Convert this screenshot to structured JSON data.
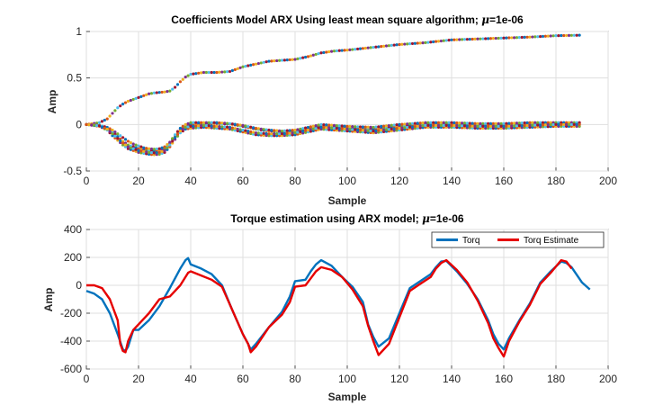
{
  "chart_data": [
    {
      "type": "scatter",
      "title_prefix": "Coefficients Model ARX Using least mean square algorithm; ",
      "title_mu": "μ",
      "title_suffix": "=1e-06",
      "xlabel": "Sample",
      "ylabel": "Amp",
      "xlim": [
        0,
        200
      ],
      "ylim": [
        -0.5,
        1
      ],
      "xticks": [
        "0",
        "20",
        "40",
        "60",
        "80",
        "100",
        "120",
        "140",
        "160",
        "180",
        "200"
      ],
      "yticks": [
        "-0.5",
        "0",
        "0.5",
        "1"
      ],
      "grid": true,
      "marker_colors": [
        "#0072bd",
        "#d95319",
        "#edb120",
        "#7e2f8e",
        "#77ac30",
        "#4dbeee",
        "#a2142f"
      ],
      "series": [
        {
          "x": [
            0,
            5,
            8,
            10,
            12,
            14,
            16,
            18,
            20,
            22,
            24,
            26,
            28,
            30,
            32,
            34,
            36,
            38,
            40,
            45,
            50,
            55,
            58,
            60,
            65,
            70,
            75,
            80,
            85,
            90,
            95,
            100,
            110,
            120,
            130,
            140,
            150,
            160,
            170,
            180,
            189
          ],
          "values": [
            0,
            0.02,
            0.06,
            0.12,
            0.18,
            0.22,
            0.25,
            0.27,
            0.29,
            0.31,
            0.33,
            0.34,
            0.345,
            0.35,
            0.36,
            0.4,
            0.46,
            0.51,
            0.54,
            0.56,
            0.56,
            0.57,
            0.6,
            0.62,
            0.65,
            0.68,
            0.69,
            0.7,
            0.73,
            0.77,
            0.79,
            0.8,
            0.83,
            0.86,
            0.88,
            0.91,
            0.92,
            0.93,
            0.94,
            0.955,
            0.96
          ]
        },
        {
          "x": [
            0,
            5,
            8,
            10,
            12,
            14,
            16,
            18,
            20,
            22,
            24,
            26,
            28,
            30,
            32,
            34,
            36,
            38,
            40,
            45,
            50,
            55,
            60,
            65,
            70,
            75,
            80,
            85,
            90,
            95,
            100,
            110,
            120,
            130,
            140,
            150,
            160,
            170,
            180,
            189
          ],
          "values": [
            0,
            -0.01,
            -0.04,
            -0.08,
            -0.13,
            -0.18,
            -0.22,
            -0.24,
            -0.26,
            -0.27,
            -0.28,
            -0.285,
            -0.28,
            -0.26,
            -0.2,
            -0.12,
            -0.05,
            -0.01,
            0.0,
            0.01,
            0.01,
            0.005,
            -0.02,
            -0.05,
            -0.07,
            -0.08,
            -0.07,
            -0.04,
            -0.02,
            -0.03,
            -0.04,
            -0.05,
            -0.02,
            0.01,
            0.0,
            -0.01,
            -0.01,
            0.0,
            0.01,
            0.01
          ]
        },
        {
          "x": [
            0,
            5,
            8,
            10,
            12,
            14,
            16,
            18,
            20,
            22,
            24,
            26,
            28,
            30,
            32,
            34,
            36,
            38,
            40,
            45,
            50,
            55,
            60,
            65,
            70,
            75,
            80,
            85,
            90,
            95,
            100,
            110,
            120,
            130,
            140,
            150,
            160,
            170,
            180,
            189
          ],
          "values": [
            0,
            -0.02,
            -0.06,
            -0.12,
            -0.17,
            -0.22,
            -0.26,
            -0.28,
            -0.3,
            -0.31,
            -0.32,
            -0.325,
            -0.32,
            -0.3,
            -0.24,
            -0.16,
            -0.09,
            -0.05,
            -0.04,
            -0.03,
            -0.04,
            -0.05,
            -0.08,
            -0.11,
            -0.12,
            -0.12,
            -0.11,
            -0.08,
            -0.05,
            -0.06,
            -0.07,
            -0.09,
            -0.06,
            -0.03,
            -0.03,
            -0.04,
            -0.04,
            -0.03,
            -0.02,
            -0.02
          ]
        },
        {
          "x": [
            0,
            5,
            8,
            10,
            12,
            14,
            16,
            18,
            20,
            22,
            24,
            26,
            28,
            30,
            32,
            34,
            36,
            38,
            40,
            45,
            50,
            55,
            60,
            65,
            70,
            75,
            80,
            85,
            90,
            95,
            100,
            110,
            120,
            130,
            140,
            150,
            160,
            170,
            180,
            189
          ],
          "values": [
            0,
            -0.01,
            -0.03,
            -0.06,
            -0.1,
            -0.14,
            -0.18,
            -0.21,
            -0.23,
            -0.25,
            -0.26,
            -0.265,
            -0.26,
            -0.24,
            -0.19,
            -0.11,
            -0.04,
            0.0,
            0.02,
            0.02,
            0.02,
            0.01,
            -0.01,
            -0.04,
            -0.06,
            -0.07,
            -0.06,
            -0.03,
            0.0,
            -0.01,
            -0.02,
            -0.03,
            0.0,
            0.02,
            0.02,
            0.01,
            0.01,
            0.02,
            0.02,
            0.02
          ]
        },
        {
          "x": [
            0,
            5,
            8,
            10,
            12,
            14,
            16,
            18,
            20,
            22,
            24,
            26,
            28,
            30,
            32,
            34,
            36,
            38,
            40,
            45,
            50,
            55,
            60,
            65,
            70,
            75,
            80,
            85,
            90,
            95,
            100,
            110,
            120,
            130,
            140,
            150,
            160,
            170,
            180,
            189
          ],
          "values": [
            0,
            -0.015,
            -0.05,
            -0.1,
            -0.15,
            -0.2,
            -0.24,
            -0.26,
            -0.28,
            -0.29,
            -0.3,
            -0.305,
            -0.3,
            -0.28,
            -0.22,
            -0.14,
            -0.07,
            -0.03,
            -0.02,
            -0.01,
            -0.02,
            -0.03,
            -0.06,
            -0.09,
            -0.1,
            -0.1,
            -0.09,
            -0.06,
            -0.03,
            -0.04,
            -0.05,
            -0.07,
            -0.04,
            -0.01,
            -0.01,
            -0.02,
            -0.02,
            -0.01,
            0.0,
            0.0
          ]
        }
      ]
    },
    {
      "type": "line",
      "title_prefix": "Torque estimation using ARX model; ",
      "title_mu": "μ",
      "title_suffix": "=1e-06",
      "xlabel": "Sample",
      "ylabel": "Amp",
      "xlim": [
        0,
        200
      ],
      "ylim": [
        -600,
        400
      ],
      "xticks": [
        "0",
        "20",
        "40",
        "60",
        "80",
        "100",
        "120",
        "140",
        "160",
        "180",
        "200"
      ],
      "yticks": [
        "-600",
        "-400",
        "-200",
        "0",
        "200",
        "400"
      ],
      "grid": true,
      "legend_position": "top-right",
      "series": [
        {
          "name": "Torq",
          "color": "#0072bd",
          "x": [
            0,
            3,
            6,
            9,
            12,
            14,
            15,
            16,
            18,
            20,
            24,
            28,
            32,
            36,
            38,
            39,
            40,
            44,
            48,
            52,
            56,
            60,
            62,
            63,
            65,
            70,
            75,
            78,
            80,
            84,
            86,
            88,
            90,
            94,
            98,
            102,
            106,
            108,
            110,
            112,
            116,
            120,
            124,
            128,
            132,
            134,
            136,
            138,
            142,
            146,
            150,
            154,
            156,
            158,
            160,
            162,
            166,
            170,
            174,
            178,
            182,
            184,
            186,
            190,
            193
          ],
          "values": [
            -40,
            -60,
            -100,
            -200,
            -350,
            -460,
            -470,
            -440,
            -320,
            -320,
            -250,
            -150,
            -20,
            120,
            180,
            195,
            150,
            120,
            80,
            0,
            -180,
            -350,
            -420,
            -460,
            -420,
            -300,
            -190,
            -80,
            30,
            40,
            100,
            150,
            180,
            140,
            60,
            -10,
            -120,
            -280,
            -370,
            -440,
            -380,
            -200,
            -20,
            30,
            80,
            130,
            170,
            175,
            100,
            10,
            -100,
            -250,
            -350,
            -420,
            -460,
            -380,
            -250,
            -130,
            20,
            100,
            170,
            160,
            130,
            20,
            -30
          ]
        },
        {
          "name": "Torq Estimate",
          "color": "#e60000",
          "x": [
            0,
            3,
            6,
            9,
            12,
            13,
            14,
            15,
            16,
            18,
            20,
            24,
            28,
            32,
            36,
            38,
            39,
            40,
            44,
            48,
            52,
            56,
            60,
            62,
            63,
            65,
            70,
            75,
            78,
            80,
            84,
            86,
            88,
            90,
            94,
            98,
            102,
            106,
            108,
            110,
            112,
            116,
            120,
            124,
            128,
            132,
            134,
            136,
            138,
            142,
            146,
            150,
            154,
            156,
            158,
            160,
            162,
            166,
            170,
            174,
            178,
            182,
            184,
            186
          ],
          "values": [
            0,
            0,
            -20,
            -100,
            -250,
            -420,
            -470,
            -480,
            -400,
            -320,
            -280,
            -200,
            -100,
            -80,
            0,
            60,
            90,
            100,
            70,
            40,
            -10,
            -180,
            -350,
            -420,
            -480,
            -440,
            -300,
            -210,
            -120,
            -10,
            0,
            50,
            100,
            130,
            110,
            60,
            -30,
            -150,
            -290,
            -400,
            -500,
            -420,
            -230,
            -40,
            10,
            60,
            120,
            160,
            180,
            110,
            20,
            -110,
            -270,
            -380,
            -450,
            -510,
            -400,
            -260,
            -140,
            10,
            90,
            180,
            170,
            120
          ]
        }
      ]
    }
  ]
}
